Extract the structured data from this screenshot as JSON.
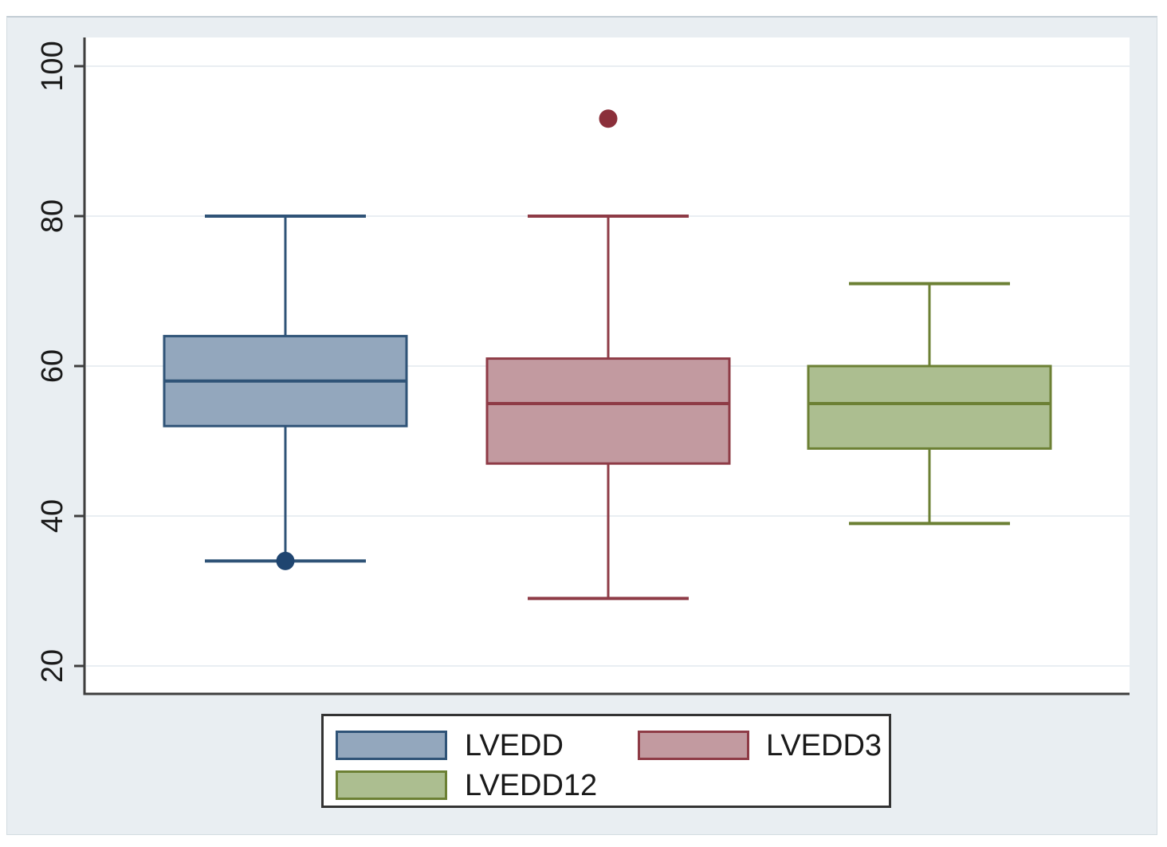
{
  "chart_data": {
    "type": "box",
    "title": "",
    "xlabel": "",
    "ylabel": "",
    "yticks": [
      20,
      40,
      60,
      80,
      100
    ],
    "ylim": [
      16,
      104
    ],
    "grid": true,
    "legend_position": "bottom",
    "series": [
      {
        "name": "LVEDD",
        "q1": 52,
        "median": 58,
        "q3": 64,
        "whisker_low": 34,
        "whisker_high": 80,
        "outliers": [
          34
        ],
        "fill": "#93a7bd",
        "stroke": "#2f5377",
        "dot": "#1f4570"
      },
      {
        "name": "LVEDD3",
        "q1": 47,
        "median": 55,
        "q3": 61,
        "whisker_low": 29,
        "whisker_high": 80,
        "outliers": [
          93
        ],
        "fill": "#c29aa0",
        "stroke": "#8e3b46",
        "dot": "#8b2f3a"
      },
      {
        "name": "LVEDD12",
        "q1": 49,
        "median": 55,
        "q3": 60,
        "whisker_low": 39,
        "whisker_high": 71,
        "outliers": [],
        "fill": "#acbe90",
        "stroke": "#6c8034",
        "dot": "#6c8034"
      }
    ]
  },
  "colors": {
    "page_background": "#ffffff",
    "graph_background": "#e9eef2",
    "plot_background": "#ffffff",
    "gridline": "#e9eef2",
    "axis": "#3e3e3e",
    "legend_border": "#333333",
    "text": "#1a1a1a"
  }
}
